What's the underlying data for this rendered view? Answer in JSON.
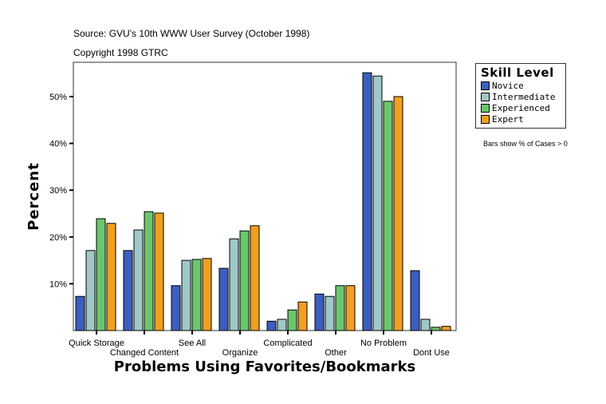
{
  "header": {
    "source": "Source: GVU's 10th WWW User Survey (October 1998)",
    "copyright": "Copyright 1998 GTRC"
  },
  "note": "Bars show % of Cases > 0",
  "chart_data": {
    "type": "bar",
    "xlabel": "Problems Using Favorites/Bookmarks",
    "ylabel": "Percent",
    "ylim": [
      0,
      57.3
    ],
    "yticks": [
      10,
      20,
      30,
      40,
      50
    ],
    "ytick_labels": [
      "10%",
      "20%",
      "30%",
      "40%",
      "50%"
    ],
    "grid": false,
    "legend": {
      "title": "Skill Level",
      "placement": "right"
    },
    "categories": [
      "Quick Storage",
      "Changed Content",
      "See All",
      "Organize",
      "Complicated",
      "Other",
      "No Problem",
      "Dont Use"
    ],
    "series": [
      {
        "name": "Novice",
        "color": "#3a5fbf",
        "values": [
          7.3,
          17.1,
          9.6,
          13.3,
          2.0,
          7.8,
          55.1,
          12.8
        ]
      },
      {
        "name": "Intermediate",
        "color": "#a0c8c8",
        "values": [
          17.1,
          21.5,
          15.0,
          19.6,
          2.4,
          7.3,
          54.4,
          2.4
        ]
      },
      {
        "name": "Experienced",
        "color": "#6cc66c",
        "values": [
          23.9,
          25.4,
          15.2,
          21.3,
          4.4,
          9.6,
          49.0,
          0.7
        ]
      },
      {
        "name": "Expert",
        "color": "#f0a020",
        "values": [
          22.9,
          25.1,
          15.4,
          22.4,
          6.1,
          9.6,
          50.0,
          0.9
        ]
      }
    ]
  }
}
